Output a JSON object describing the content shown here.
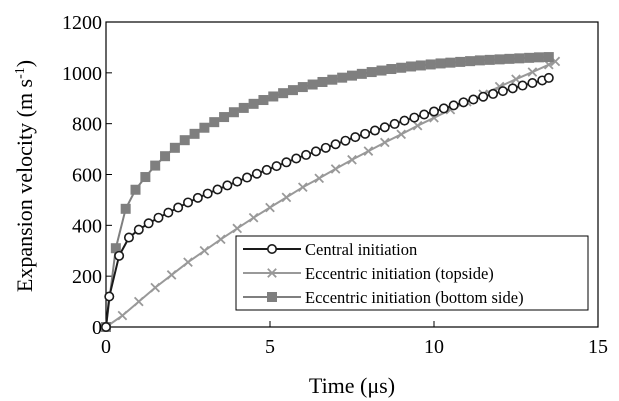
{
  "chart_data": {
    "type": "line",
    "xlabel": "Time (μs)",
    "ylabel_main": "Expansion velocity (m s",
    "ylabel_sup": "-1",
    "ylabel_close": ")",
    "xlim": [
      0,
      15
    ],
    "ylim": [
      0,
      1200
    ],
    "xticks": [
      "0",
      "5",
      "10",
      "15"
    ],
    "yticks": [
      "0",
      "200",
      "400",
      "600",
      "800",
      "1000",
      "1200"
    ],
    "grid": false,
    "legend_position": "bottom-right",
    "series": [
      {
        "name": "Central initiation",
        "marker": "open-circle",
        "color": "#1a1a1a",
        "x": [
          0,
          0.1,
          0.4,
          0.7,
          1.0,
          1.3,
          1.6,
          1.9,
          2.2,
          2.5,
          2.8,
          3.1,
          3.4,
          3.7,
          4.0,
          4.3,
          4.6,
          4.9,
          5.2,
          5.5,
          5.8,
          6.1,
          6.4,
          6.7,
          7.0,
          7.3,
          7.6,
          7.9,
          8.2,
          8.5,
          8.8,
          9.1,
          9.4,
          9.7,
          10.0,
          10.3,
          10.6,
          10.9,
          11.2,
          11.5,
          11.8,
          12.1,
          12.4,
          12.7,
          13.0,
          13.3,
          13.5
        ],
        "y": [
          0,
          120,
          280,
          352,
          383,
          408,
          430,
          450,
          470,
          490,
          508,
          525,
          541,
          557,
          572,
          588,
          603,
          618,
          633,
          648,
          663,
          677,
          691,
          705,
          719,
          733,
          747,
          760,
          773,
          786,
          799,
          812,
          824,
          836,
          848,
          860,
          872,
          884,
          895,
          906,
          917,
          928,
          939,
          950,
          960,
          970,
          980
        ]
      },
      {
        "name": "Eccentric initiation (topside)",
        "marker": "x",
        "color": "#999999",
        "x": [
          0,
          0.5,
          1.0,
          1.5,
          2.0,
          2.5,
          3.0,
          3.5,
          4.0,
          4.5,
          5.0,
          5.5,
          6.0,
          6.5,
          7.0,
          7.5,
          8.0,
          8.5,
          9.0,
          9.5,
          10.0,
          10.5,
          11.0,
          11.5,
          12.0,
          12.5,
          13.0,
          13.5,
          13.7
        ],
        "y": [
          0,
          45,
          100,
          155,
          205,
          255,
          300,
          345,
          388,
          430,
          470,
          510,
          550,
          585,
          622,
          658,
          692,
          726,
          758,
          792,
          823,
          855,
          886,
          916,
          946,
          975,
          1003,
          1032,
          1045
        ]
      },
      {
        "name": "Eccentric initiation (bottom side)",
        "marker": "filled-square",
        "color": "#7f7f7f",
        "x": [
          0,
          0.3,
          0.6,
          0.9,
          1.2,
          1.5,
          1.8,
          2.1,
          2.4,
          2.7,
          3.0,
          3.3,
          3.6,
          3.9,
          4.2,
          4.5,
          4.8,
          5.1,
          5.4,
          5.7,
          6.0,
          6.3,
          6.6,
          6.9,
          7.2,
          7.5,
          7.8,
          8.1,
          8.4,
          8.7,
          9.0,
          9.3,
          9.6,
          9.9,
          10.2,
          10.5,
          10.8,
          11.1,
          11.4,
          11.7,
          12.0,
          12.3,
          12.6,
          12.9,
          13.2,
          13.5
        ],
        "y": [
          0,
          310,
          465,
          540,
          590,
          635,
          672,
          705,
          735,
          760,
          784,
          806,
          826,
          845,
          862,
          878,
          893,
          907,
          920,
          932,
          944,
          954,
          964,
          973,
          981,
          989,
          996,
          1003,
          1009,
          1015,
          1020,
          1025,
          1029,
          1033,
          1037,
          1040,
          1043,
          1046,
          1049,
          1051,
          1053,
          1055,
          1057,
          1059,
          1061,
          1062
        ]
      }
    ]
  }
}
